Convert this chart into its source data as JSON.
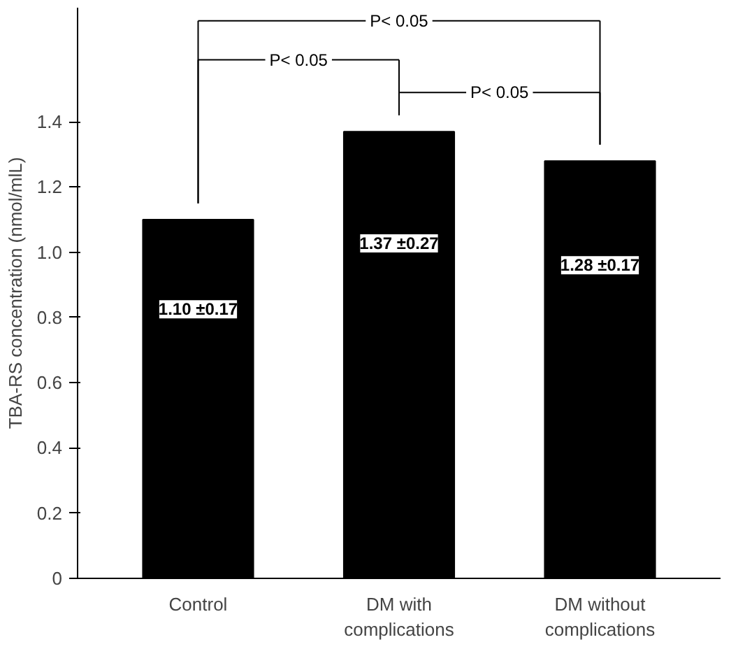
{
  "chart_data": {
    "type": "bar",
    "categories": [
      "Control",
      "DM with\ncomplications",
      "DM without\ncomplications"
    ],
    "values": [
      1.1,
      1.37,
      1.28
    ],
    "value_labels": [
      "1.10 ±0.17",
      "1.37 ±0.27",
      "1.28 ±0.17"
    ],
    "color": "#000000",
    "ylabel": "TBA-RS concentration (nmol/mlL)",
    "ylim": [
      0,
      1.75
    ],
    "yticks": [
      0,
      0.2,
      0.4,
      0.6,
      0.8,
      {
        "value": 1,
        "label": "1.0"
      },
      1.2,
      1.4
    ],
    "annotations": [
      "P< 0.05",
      "P< 0.05",
      "P< 0.05"
    ],
    "grid": false
  }
}
